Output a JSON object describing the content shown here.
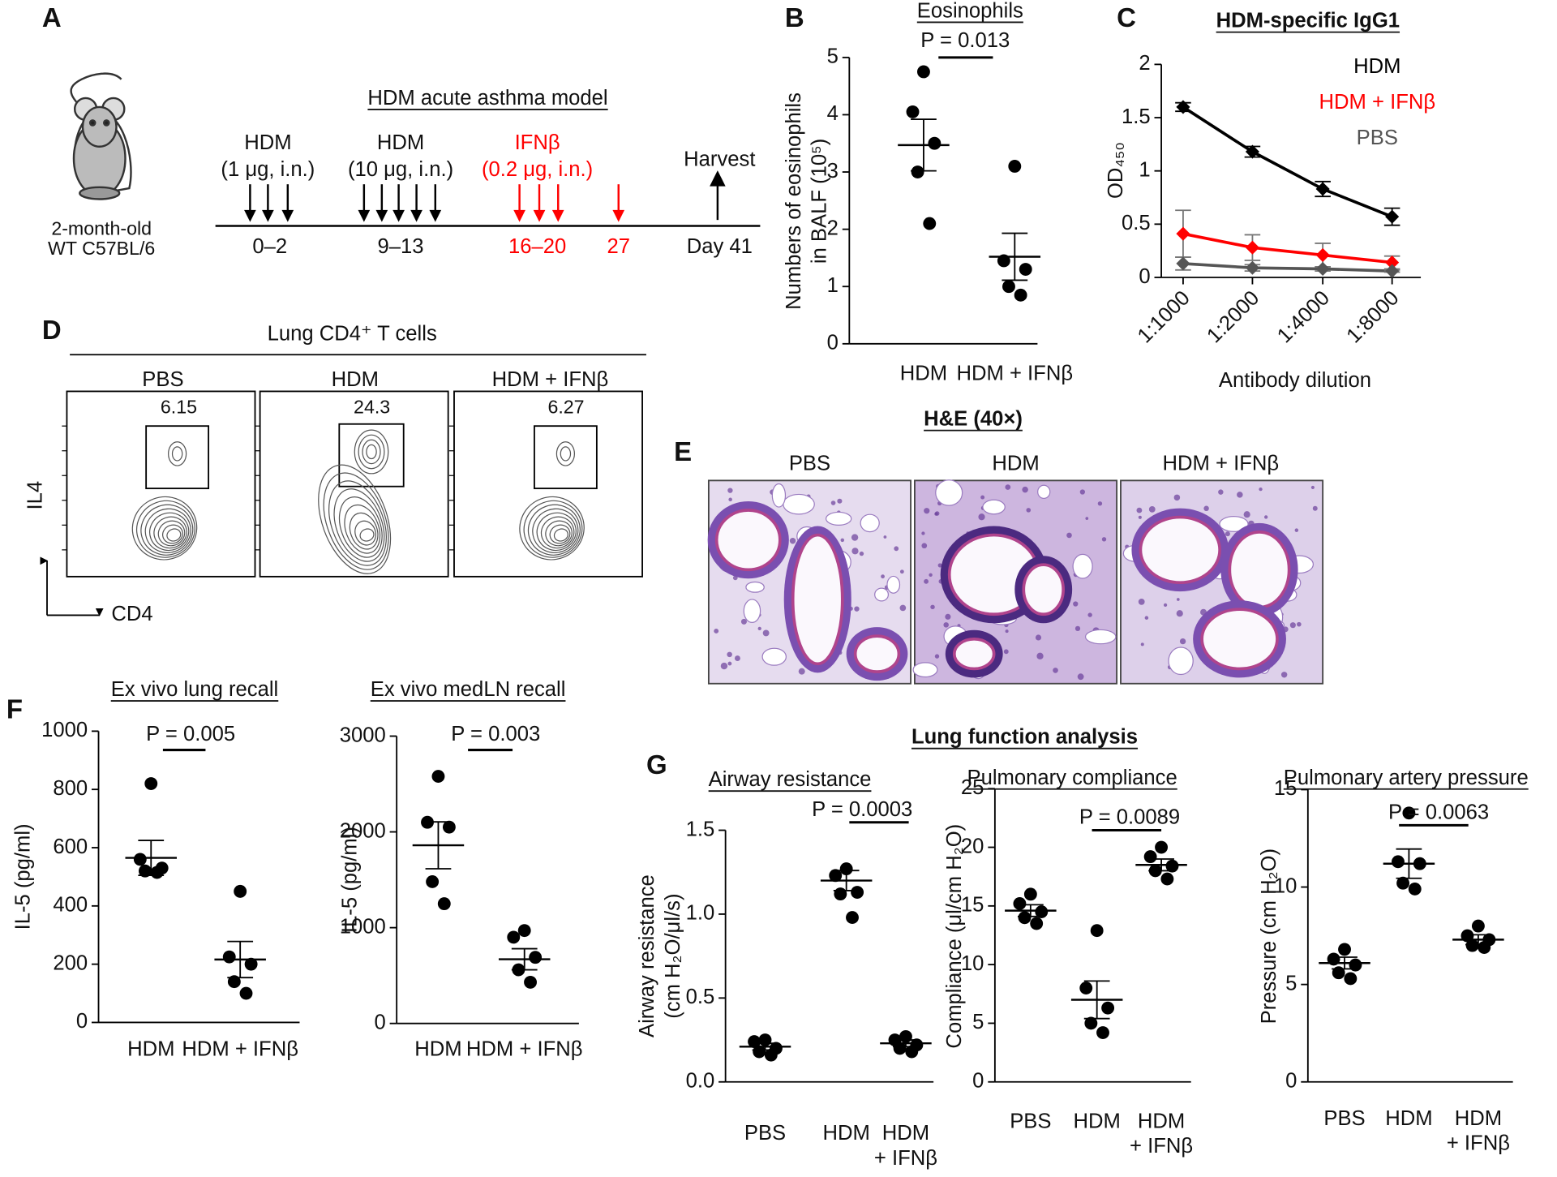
{
  "panel_labels": [
    "A",
    "B",
    "C",
    "D",
    "E",
    "F",
    "G"
  ],
  "schematic": {
    "mouse_age": "2-month-old",
    "mouse_strain": "WT C57BL/6",
    "title": "HDM acute asthma model",
    "dose1_name": "HDM",
    "dose1_detail": "(1 μg, i.n.)",
    "dose1_days": "0–2",
    "dose2_name": "HDM",
    "dose2_detail": "(10 μg, i.n.)",
    "dose2_days": "9–13",
    "treatment_name": "IFNβ",
    "treatment_detail": "(0.2 μg, i.n.)",
    "treatment_days1": "16–20",
    "treatment_days2": "27",
    "harvest": "Harvest",
    "harvest_day": "Day 41"
  },
  "flow": {
    "title": "Lung CD4⁺ T cells",
    "groups": [
      "PBS",
      "HDM",
      "HDM + IFNβ"
    ],
    "gates": [
      "6.15",
      "24.3",
      "6.27"
    ],
    "y_axis": "IL4",
    "x_axis": "CD4"
  },
  "histology": {
    "title": "H&E (40×)",
    "groups": [
      "PBS",
      "HDM",
      "HDM + IFNβ"
    ]
  },
  "lung_function_title": "Lung function analysis",
  "chart_data": [
    {
      "type": "scatter",
      "title": "Eosinophils",
      "ylabel": [
        "Numbers of eosinophils",
        "in BALF (10⁵)"
      ],
      "annotation": "P = 0.013",
      "categories": [
        "HDM",
        "HDM + IFNβ"
      ],
      "points": [
        [
          4.75,
          4.05,
          3.5,
          3.0,
          2.1
        ],
        [
          3.1,
          1.45,
          1.3,
          1.0,
          0.85
        ]
      ],
      "mean": [
        3.47,
        1.52
      ],
      "sem": [
        0.45,
        0.41
      ],
      "color": "#000000",
      "ylim": [
        0,
        5
      ],
      "yticks": [
        0,
        1,
        2,
        3,
        4,
        5
      ]
    },
    {
      "type": "line",
      "title": "HDM-specific IgG1",
      "ylabel": [
        "OD₄₅₀"
      ],
      "xlabel": "Antibody dilution",
      "categories": [
        "1:1000",
        "1:2000",
        "1:4000",
        "1:8000"
      ],
      "legend": "top-right",
      "series": [
        {
          "name": "HDM",
          "color": "#000000",
          "values": [
            1.6,
            1.18,
            0.83,
            0.57
          ],
          "errors": [
            0.04,
            0.05,
            0.07,
            0.08
          ]
        },
        {
          "name": "HDM + IFNβ",
          "color": "#ff0000",
          "values": [
            0.41,
            0.28,
            0.21,
            0.14
          ],
          "errors": [
            0.22,
            0.12,
            0.11,
            0.06
          ]
        },
        {
          "name": "PBS",
          "color": "#555555",
          "values": [
            0.13,
            0.09,
            0.08,
            0.06
          ],
          "errors": [
            0.06,
            0.03,
            0.02,
            0.01
          ]
        }
      ],
      "ylim": [
        0,
        2
      ],
      "yticks": [
        0,
        0.5,
        1,
        1.5,
        2
      ]
    },
    {
      "type": "scatter",
      "title": "Ex vivo lung recall",
      "ylabel": [
        "IL-5 (pg/ml)"
      ],
      "annotation": "P = 0.005",
      "categories": [
        "HDM",
        "HDM + IFNβ"
      ],
      "points": [
        [
          820,
          560,
          530,
          520,
          515
        ],
        [
          450,
          225,
          200,
          140,
          100
        ]
      ],
      "mean": [
        565,
        216
      ],
      "sem": [
        60,
        62
      ],
      "color": "#000000",
      "ylim": [
        0,
        1000
      ],
      "yticks": [
        0,
        200,
        400,
        600,
        800,
        1000
      ]
    },
    {
      "type": "scatter",
      "title": "Ex vivo medLN recall",
      "ylabel": [
        "IL-5 (pg/ml)"
      ],
      "annotation": "P = 0.003",
      "categories": [
        "HDM",
        "HDM + IFNβ"
      ],
      "points": [
        [
          2580,
          2100,
          2050,
          1480,
          1250
        ],
        [
          970,
          900,
          690,
          560,
          430
        ]
      ],
      "mean": [
        1860,
        670
      ],
      "sem": [
        245,
        110
      ],
      "color": "#000000",
      "ylim": [
        0,
        3000
      ],
      "yticks": [
        0,
        1000,
        2000,
        3000
      ]
    },
    {
      "type": "scatter",
      "title": "Airway resistance",
      "ylabel": [
        "Airway resistance",
        "(cm H₂O/μl/s)"
      ],
      "annotation": "P = 0.0003",
      "categories": [
        [
          "PBS"
        ],
        [
          "HDM"
        ],
        [
          "HDM",
          "+ IFNβ"
        ]
      ],
      "points": [
        [
          0.25,
          0.24,
          0.2,
          0.18,
          0.16
        ],
        [
          1.27,
          1.23,
          1.13,
          1.12,
          0.98
        ],
        [
          0.27,
          0.25,
          0.22,
          0.2,
          0.18
        ]
      ],
      "mean": [
        0.21,
        1.2,
        0.23
      ],
      "sem": [
        0.02,
        0.06,
        0.02
      ],
      "color": "#000000",
      "ylim": [
        0,
        1.5
      ],
      "yticks": [
        {
          "value": 0,
          "label": "0.0"
        },
        0.5,
        {
          "value": 1,
          "label": "1.0"
        },
        1.5
      ]
    },
    {
      "type": "scatter",
      "title": "Pulmonary compliance",
      "ylabel": [
        "Compliance (μl/cm H₂O)"
      ],
      "annotation": "P = 0.0089",
      "categories": [
        [
          "PBS"
        ],
        [
          "HDM"
        ],
        [
          "HDM",
          "+ IFNβ"
        ]
      ],
      "points": [
        [
          16,
          15.2,
          14.5,
          14,
          13.5
        ],
        [
          12.9,
          8,
          6.3,
          5,
          4.2
        ],
        [
          20,
          19.2,
          18.4,
          18,
          17.3
        ]
      ],
      "mean": [
        14.6,
        7,
        18.5
      ],
      "sem": [
        0.5,
        1.6,
        0.5
      ],
      "color": "#000000",
      "ylim": [
        0,
        25
      ],
      "yticks": [
        0,
        5,
        10,
        15,
        20,
        25
      ]
    },
    {
      "type": "scatter",
      "title": "Pulmonary artery pressure",
      "ylabel": [
        "Pressure (cm H₂O)"
      ],
      "annotation": "P = 0.0063",
      "categories": [
        [
          "PBS"
        ],
        [
          "HDM"
        ],
        [
          "HDM",
          "+ IFNβ"
        ]
      ],
      "points": [
        [
          6.8,
          6.3,
          6,
          5.6,
          5.3
        ],
        [
          13.8,
          11.3,
          11.2,
          10.2,
          9.9
        ],
        [
          8.0,
          7.5,
          7.3,
          7.0,
          6.9
        ]
      ],
      "mean": [
        6.1,
        11.2,
        7.3
      ],
      "sem": [
        0.3,
        0.75,
        0.25
      ],
      "color": "#000000",
      "ylim": [
        0,
        15
      ],
      "yticks": [
        0,
        5,
        10,
        15
      ]
    }
  ]
}
